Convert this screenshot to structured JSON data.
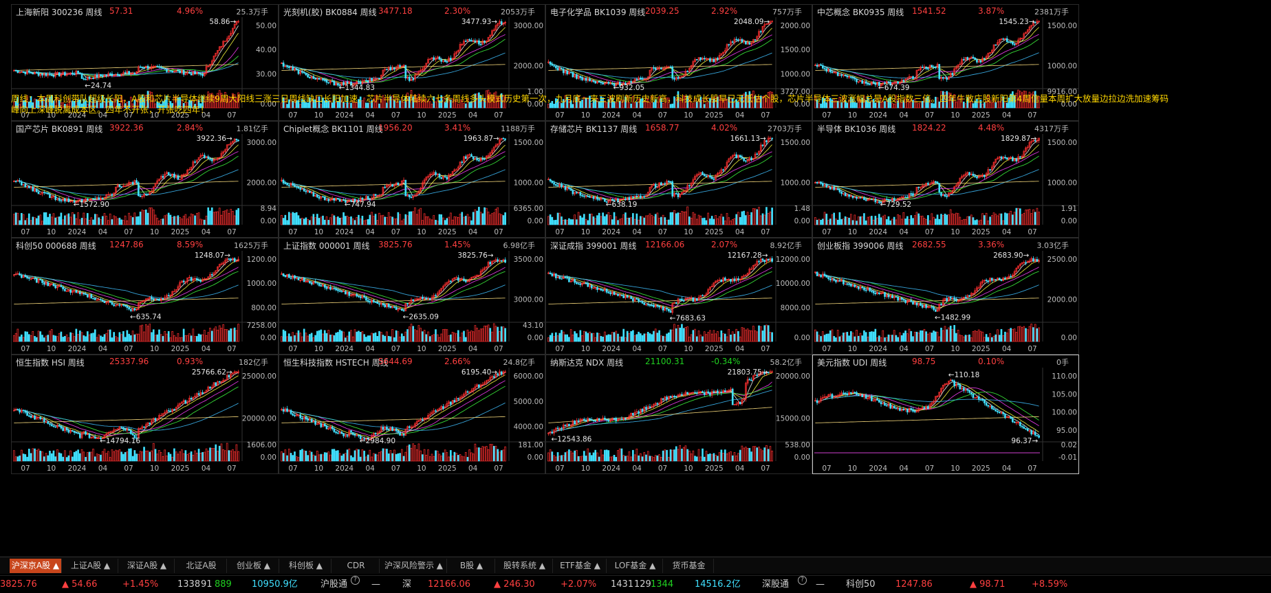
{
  "colors": {
    "up": "#ff4040",
    "down": "#20d020",
    "annotation": "#ffd700",
    "active_tab": "#c8461c",
    "cyan_bar": "#40e0ff"
  },
  "period_label": "周线",
  "annotation_text": "周线：本周科创带队超级长阳，A股和芯片半导体继续9周大阳线三涨三日周线缺口长阳加速，芯片半导体陆续六七条周线多头模式历史第一次，九月底一来三波刷新历史新高，科技成长股早已无低估个股，芯片半导体三波涨幅总是A股指数三倍。四年牛散庄股新阳第4周信量本周扩大放量边拉边洗加速筹码峰向上深峰脱离成本区。四年不开张，开张吃四年！",
  "panels": [
    {
      "name": "上海新阳 300236",
      "price": "57.31",
      "pct": "4.96%",
      "dir": "up",
      "vol": "25.3万手",
      "y_ticks": [
        "50.00",
        "40.00",
        "30.00"
      ],
      "vol_ticks": [
        "0.00"
      ],
      "high": "58.86",
      "low": "24.74",
      "x_ticks": [
        "07",
        "10",
        "2024",
        "04",
        "07",
        "10",
        "2025",
        "04",
        "07"
      ],
      "shape": "a"
    },
    {
      "name": "光刻机(胶) BK0884",
      "price": "3477.18",
      "pct": "2.30%",
      "dir": "up",
      "vol": "2053万手",
      "y_ticks": [
        "3000.00",
        "2000.00"
      ],
      "vol_ticks": [
        "1.00",
        "0.00"
      ],
      "high": "3477.93",
      "low": "1344.83",
      "x_ticks": [
        "07",
        "10",
        "2024",
        "04",
        "07",
        "10",
        "2025",
        "04",
        "07"
      ],
      "shape": "b"
    },
    {
      "name": "电子化学品 BK1039",
      "price": "2039.25",
      "pct": "2.92%",
      "dir": "up",
      "vol": "757万手",
      "y_ticks": [
        "2000.00",
        "1500.00",
        "1000.00"
      ],
      "vol_ticks": [
        "3727.00",
        "0.00"
      ],
      "high": "2048.09",
      "low": "932.05",
      "x_ticks": [
        "07",
        "10",
        "2024",
        "04",
        "07",
        "10",
        "2025",
        "04",
        "07"
      ],
      "shape": "b"
    },
    {
      "name": "中芯概念 BK0935",
      "price": "1541.52",
      "pct": "3.87%",
      "dir": "up",
      "vol": "2381万手",
      "y_ticks": [
        "1500.00",
        "1000.00"
      ],
      "vol_ticks": [
        "9916.00",
        "0.00"
      ],
      "high": "1545.23",
      "low": "674.39",
      "x_ticks": [
        "07",
        "10",
        "2024",
        "04",
        "07",
        "10",
        "2025",
        "04",
        "07"
      ],
      "shape": "b"
    },
    {
      "name": "国产芯片 BK0891",
      "price": "3922.36",
      "pct": "2.84%",
      "dir": "up",
      "vol": "1.81亿手",
      "y_ticks": [
        "3000.00",
        "2000.00"
      ],
      "vol_ticks": [
        "8.94",
        "0.00"
      ],
      "high": "3922.36",
      "low": "1572.90",
      "x_ticks": [
        "07",
        "10",
        "2024",
        "04",
        "07",
        "10",
        "2025",
        "04",
        "07"
      ],
      "shape": "b"
    },
    {
      "name": "Chiplet概念 BK1101",
      "price": "1956.20",
      "pct": "3.41%",
      "dir": "up",
      "vol": "1188万手",
      "y_ticks": [
        "1500.00",
        "1000.00"
      ],
      "vol_ticks": [
        "6365.00",
        "0.00"
      ],
      "high": "1963.87",
      "low": "747.94",
      "x_ticks": [
        "07",
        "10",
        "2024",
        "04",
        "07",
        "10",
        "2025",
        "04",
        "07"
      ],
      "shape": "b"
    },
    {
      "name": "存储芯片 BK1137",
      "price": "1658.77",
      "pct": "4.02%",
      "dir": "up",
      "vol": "2703万手",
      "y_ticks": [
        "1500.00",
        "1000.00"
      ],
      "vol_ticks": [
        "1.48",
        "0.00"
      ],
      "high": "1661.13",
      "low": "638.19",
      "x_ticks": [
        "07",
        "10",
        "2024",
        "04",
        "07",
        "10",
        "2025",
        "04",
        "07"
      ],
      "shape": "b"
    },
    {
      "name": "半导体 BK1036",
      "price": "1824.22",
      "pct": "4.48%",
      "dir": "up",
      "vol": "4317万手",
      "y_ticks": [
        "1500.00",
        "1000.00"
      ],
      "vol_ticks": [
        "1.91",
        "0.00"
      ],
      "high": "1829.87",
      "low": "729.52",
      "x_ticks": [
        "07",
        "10",
        "2024",
        "04",
        "07",
        "10",
        "2025",
        "04",
        "07"
      ],
      "shape": "b"
    },
    {
      "name": "科创50 000688",
      "price": "1247.86",
      "pct": "8.59%",
      "dir": "up",
      "vol": "1625万手",
      "y_ticks": [
        "1200.00",
        "1000.00",
        "800.00"
      ],
      "vol_ticks": [
        "7258.00",
        "0.00"
      ],
      "high": "1248.07",
      "low": "635.74",
      "x_ticks": [
        "07",
        "10",
        "2024",
        "04",
        "07",
        "10",
        "2025",
        "04",
        "07"
      ],
      "shape": "c"
    },
    {
      "name": "上证指数 000001",
      "price": "3825.76",
      "pct": "1.45%",
      "dir": "up",
      "vol": "6.98亿手",
      "y_ticks": [
        "3500.00",
        "3000.00"
      ],
      "vol_ticks": [
        "43.10",
        "0.00"
      ],
      "high": "3825.76",
      "low": "2635.09",
      "x_ticks": [
        "07",
        "10",
        "2024",
        "04",
        "07",
        "10",
        "2025",
        "04",
        "07"
      ],
      "shape": "c"
    },
    {
      "name": "深证成指 399001",
      "price": "12166.06",
      "pct": "2.07%",
      "dir": "up",
      "vol": "8.92亿手",
      "y_ticks": [
        "12000.00",
        "10000.00",
        "8000.00"
      ],
      "vol_ticks": [
        "0.00"
      ],
      "high": "12167.28",
      "low": "7683.63",
      "x_ticks": [
        "07",
        "10",
        "2024",
        "04",
        "07",
        "10",
        "2025",
        "04",
        "07"
      ],
      "shape": "c"
    },
    {
      "name": "创业板指 399006",
      "price": "2682.55",
      "pct": "3.36%",
      "dir": "up",
      "vol": "3.03亿手",
      "y_ticks": [
        "2500.00",
        "2000.00"
      ],
      "vol_ticks": [
        "0.00"
      ],
      "high": "2683.90",
      "low": "1482.99",
      "x_ticks": [
        "07",
        "10",
        "2024",
        "04",
        "07",
        "10",
        "2025",
        "04",
        "07"
      ],
      "shape": "c"
    },
    {
      "name": "恒生指数 HSI",
      "price": "25337.96",
      "pct": "0.93%",
      "dir": "up",
      "vol": "182亿手",
      "y_ticks": [
        "25000.00",
        "20000.00"
      ],
      "vol_ticks": [
        "1606.00",
        "0.00"
      ],
      "high": "25766.62",
      "low": "14794.16",
      "x_ticks": [
        "07",
        "10",
        "2024",
        "04",
        "07",
        "10",
        "2025",
        "04",
        "07"
      ],
      "shape": "d"
    },
    {
      "name": "恒生科技指数 HSTECH",
      "price": "5644.69",
      "pct": "2.66%",
      "dir": "up",
      "vol": "24.8亿手",
      "y_ticks": [
        "6000.00",
        "5000.00",
        "4000.00"
      ],
      "vol_ticks": [
        "181.00",
        "0.00"
      ],
      "high": "6195.40",
      "low": "2984.90",
      "x_ticks": [
        "07",
        "10",
        "2024",
        "04",
        "07",
        "10",
        "2025",
        "04",
        "07"
      ],
      "shape": "d"
    },
    {
      "name": "纳斯达克 NDX",
      "price": "21100.31",
      "pct": "-0.34%",
      "dir": "down",
      "vol": "58.2亿手",
      "y_ticks": [
        "20000.00",
        "15000.00"
      ],
      "vol_ticks": [
        "538.00",
        "0.00"
      ],
      "high": "21803.75",
      "low": "12543.86",
      "x_ticks": [
        "07",
        "10",
        "2024",
        "04",
        "07",
        "10",
        "2025",
        "04",
        "07"
      ],
      "shape": "e"
    },
    {
      "name": "美元指数 UDI",
      "price": "98.75",
      "pct": "0.10%",
      "dir": "up",
      "vol": "0手",
      "y_ticks": [
        "110.00",
        "105.00",
        "100.00",
        "95.00"
      ],
      "vol_ticks": [
        "0.02",
        "-0.01"
      ],
      "high": "110.18",
      "low": "96.37",
      "x_ticks": [
        "07",
        "10",
        "2024",
        "04",
        "07",
        "10",
        "2025",
        "04",
        "07"
      ],
      "shape": "f"
    }
  ],
  "tabs": [
    {
      "label": "沪深京A股 ▲",
      "active": true
    },
    {
      "label": "上证A股 ▲",
      "active": false
    },
    {
      "label": "深证A股 ▲",
      "active": false
    },
    {
      "label": "北证A股",
      "active": false
    },
    {
      "label": "创业板 ▲",
      "active": false
    },
    {
      "label": "科创板 ▲",
      "active": false
    },
    {
      "label": "CDR",
      "active": false
    },
    {
      "label": "沪深风险警示 ▲",
      "active": false
    },
    {
      "label": "B股 ▲",
      "active": false
    },
    {
      "label": "股转系统 ▲",
      "active": false
    },
    {
      "label": "ETF基金 ▲",
      "active": false
    },
    {
      "label": "LOF基金 ▲",
      "active": false
    },
    {
      "label": "货币基金",
      "active": false
    }
  ],
  "status": {
    "sh_index": "3825.76",
    "sh_change": "▲ 54.66",
    "sh_pct": "+1.45%",
    "sh_up": "1338",
    "sh_flat": "91",
    "sh_down": "889",
    "sh_amount": "10950.9亿",
    "hgt_label": "沪股通",
    "hgt_value": "—",
    "sz_label": "深",
    "sz_index": "12166.06",
    "sz_change": "▲ 246.30",
    "sz_pct": "+2.07%",
    "sz_up": "1431",
    "sz_flat": "129",
    "sz_down": "1344",
    "sz_amount": "14516.2亿",
    "sgt_label": "深股通",
    "sgt_value": "—",
    "kc_label": "科创50",
    "kc_index": "1247.86",
    "kc_change": "▲ 98.71",
    "kc_pct": "+8.59%"
  }
}
